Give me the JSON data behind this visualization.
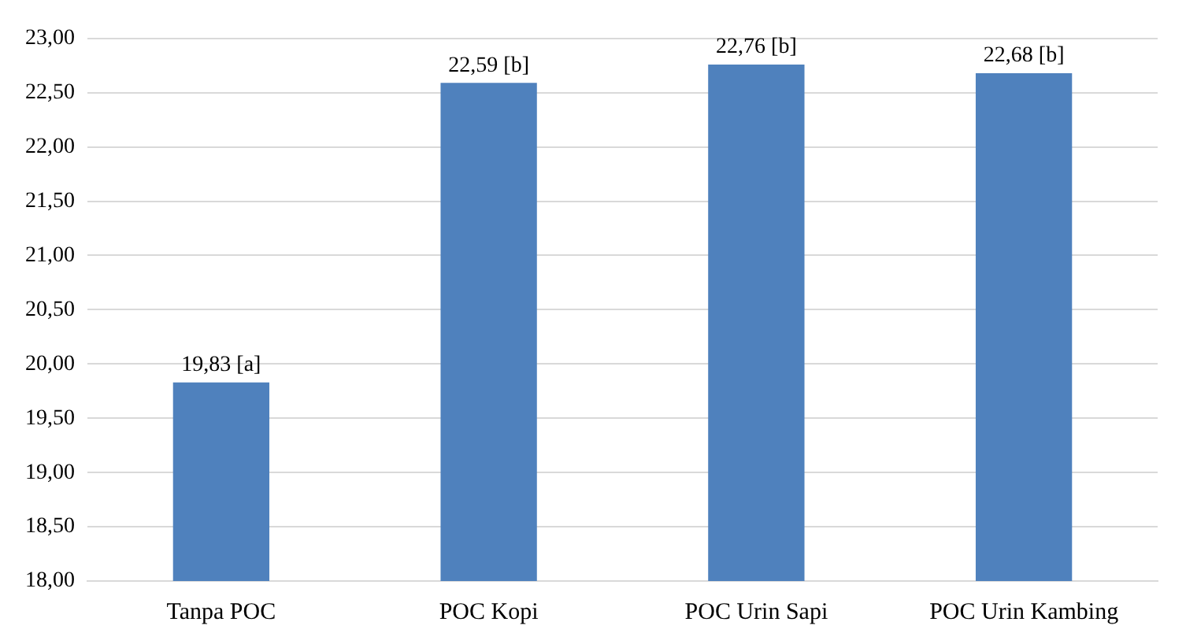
{
  "chart_data": {
    "type": "bar",
    "categories": [
      "Tanpa POC",
      "POC Kopi",
      "POC Urin Sapi",
      "POC Urin Kambing"
    ],
    "values": [
      19.83,
      22.59,
      22.76,
      22.68
    ],
    "value_labels": [
      "19,83 [a]",
      "22,59 [b]",
      "22,76 [b]",
      "22,68 [b]"
    ],
    "color": "#4f81bd",
    "ylim": [
      18,
      23
    ],
    "yticks": [
      {
        "value": 18,
        "label": "18,00"
      },
      {
        "value": 18.5,
        "label": "18,50"
      },
      {
        "value": 19,
        "label": "19,00"
      },
      {
        "value": 19.5,
        "label": "19,50"
      },
      {
        "value": 20,
        "label": "20,00"
      },
      {
        "value": 20.5,
        "label": "20,50"
      },
      {
        "value": 21,
        "label": "21,00"
      },
      {
        "value": 21.5,
        "label": "21,50"
      },
      {
        "value": 22,
        "label": "22,00"
      },
      {
        "value": 22.5,
        "label": "22,50"
      },
      {
        "value": 23,
        "label": "23,00"
      }
    ],
    "grid": "y",
    "legend": false
  }
}
